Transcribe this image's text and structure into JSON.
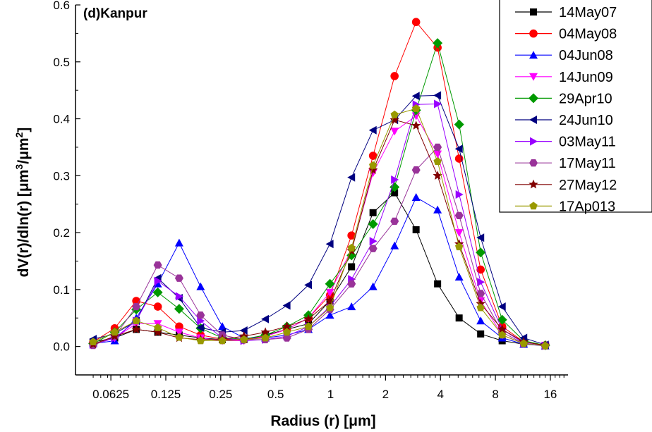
{
  "chart_data": {
    "type": "line",
    "title": "(d)Kanpur",
    "xlabel": "Radius (r) [μm]",
    "ylabel_main": "dV(r)/dln(r) [μm",
    "ylabel_sup1": "3",
    "ylabel_mid": "/μm",
    "ylabel_sup2": "2",
    "ylabel_end": "]",
    "xscale": "log2",
    "xlim": [
      0.04,
      20
    ],
    "ylim": [
      -0.05,
      0.6
    ],
    "xticks": [
      0.0625,
      0.125,
      0.25,
      0.5,
      1,
      2,
      4,
      8,
      16
    ],
    "xtick_labels": [
      "0.0625",
      "0.125",
      "0.25",
      "0.5",
      "1",
      "2",
      "4",
      "8",
      "16"
    ],
    "yticks": [
      0.0,
      0.1,
      0.2,
      0.3,
      0.4,
      0.5,
      0.6
    ],
    "ytick_labels": [
      "0.0",
      "0.1",
      "0.2",
      "0.3",
      "0.4",
      "0.5",
      "0.6"
    ],
    "legend_position": "top-right",
    "x": [
      0.05,
      0.0656,
      0.0861,
      0.113,
      0.148,
      0.194,
      0.255,
      0.335,
      0.439,
      0.576,
      0.756,
      0.992,
      1.302,
      1.708,
      2.241,
      2.94,
      3.857,
      5.061,
      6.641,
      8.713,
      11.432,
      15.0
    ],
    "series": [
      {
        "name": "14May07",
        "color": "#000000",
        "marker": "square",
        "values": [
          0.008,
          0.015,
          0.03,
          0.025,
          0.02,
          0.015,
          0.012,
          0.012,
          0.02,
          0.03,
          0.04,
          0.08,
          0.14,
          0.235,
          0.27,
          0.205,
          0.11,
          0.05,
          0.022,
          0.01,
          0.004,
          0.002
        ]
      },
      {
        "name": "04May08",
        "color": "#ff0000",
        "marker": "circle",
        "values": [
          0.008,
          0.032,
          0.08,
          0.07,
          0.035,
          0.02,
          0.013,
          0.012,
          0.018,
          0.03,
          0.05,
          0.09,
          0.195,
          0.335,
          0.475,
          0.57,
          0.525,
          0.33,
          0.135,
          0.035,
          0.008,
          0.002
        ]
      },
      {
        "name": "04Jun08",
        "color": "#0000ff",
        "marker": "triangle-up",
        "values": [
          0.005,
          0.01,
          0.05,
          0.11,
          0.182,
          0.105,
          0.035,
          0.015,
          0.015,
          0.02,
          0.03,
          0.055,
          0.07,
          0.105,
          0.177,
          0.262,
          0.24,
          0.122,
          0.045,
          0.015,
          0.004,
          0.001
        ]
      },
      {
        "name": "14Jun09",
        "color": "#ff00ff",
        "marker": "triangle-down",
        "values": [
          0.003,
          0.015,
          0.04,
          0.04,
          0.025,
          0.015,
          0.01,
          0.01,
          0.018,
          0.03,
          0.05,
          0.095,
          0.17,
          0.305,
          0.378,
          0.405,
          0.338,
          0.2,
          0.08,
          0.02,
          0.005,
          0.001
        ]
      },
      {
        "name": "29Apr10",
        "color": "#009900",
        "marker": "diamond",
        "values": [
          0.005,
          0.025,
          0.065,
          0.095,
          0.066,
          0.032,
          0.015,
          0.013,
          0.02,
          0.035,
          0.055,
          0.11,
          0.16,
          0.215,
          0.28,
          0.415,
          0.533,
          0.39,
          0.165,
          0.047,
          0.01,
          0.002
        ]
      },
      {
        "name": "24Jun10",
        "color": "#000080",
        "marker": "triangle-left",
        "values": [
          0.013,
          0.022,
          0.045,
          0.12,
          0.085,
          0.033,
          0.025,
          0.028,
          0.048,
          0.072,
          0.108,
          0.18,
          0.297,
          0.38,
          0.398,
          0.44,
          0.441,
          0.347,
          0.191,
          0.07,
          0.015,
          0.003
        ]
      },
      {
        "name": "03May11",
        "color": "#9900ff",
        "marker": "triangle-right",
        "values": [
          0.003,
          0.015,
          0.045,
          0.115,
          0.088,
          0.045,
          0.015,
          0.01,
          0.012,
          0.018,
          0.035,
          0.07,
          0.118,
          0.185,
          0.293,
          0.425,
          0.426,
          0.267,
          0.113,
          0.03,
          0.006,
          0.001
        ]
      },
      {
        "name": "17May11",
        "color": "#993399",
        "marker": "hexagon",
        "values": [
          0.002,
          0.018,
          0.07,
          0.143,
          0.12,
          0.055,
          0.02,
          0.012,
          0.012,
          0.015,
          0.03,
          0.065,
          0.11,
          0.172,
          0.22,
          0.31,
          0.35,
          0.23,
          0.093,
          0.025,
          0.005,
          0.001
        ]
      },
      {
        "name": "27May12",
        "color": "#800000",
        "marker": "star",
        "values": [
          0.004,
          0.018,
          0.03,
          0.025,
          0.015,
          0.012,
          0.013,
          0.018,
          0.025,
          0.035,
          0.048,
          0.08,
          0.168,
          0.31,
          0.398,
          0.388,
          0.3,
          0.18,
          0.075,
          0.03,
          0.008,
          0.002
        ]
      },
      {
        "name": "17Ap013",
        "color": "#999900",
        "marker": "pentagon",
        "values": [
          0.008,
          0.025,
          0.045,
          0.033,
          0.016,
          0.01,
          0.01,
          0.012,
          0.015,
          0.025,
          0.035,
          0.068,
          0.173,
          0.318,
          0.407,
          0.418,
          0.325,
          0.175,
          0.068,
          0.02,
          0.005,
          0.001
        ]
      }
    ]
  }
}
